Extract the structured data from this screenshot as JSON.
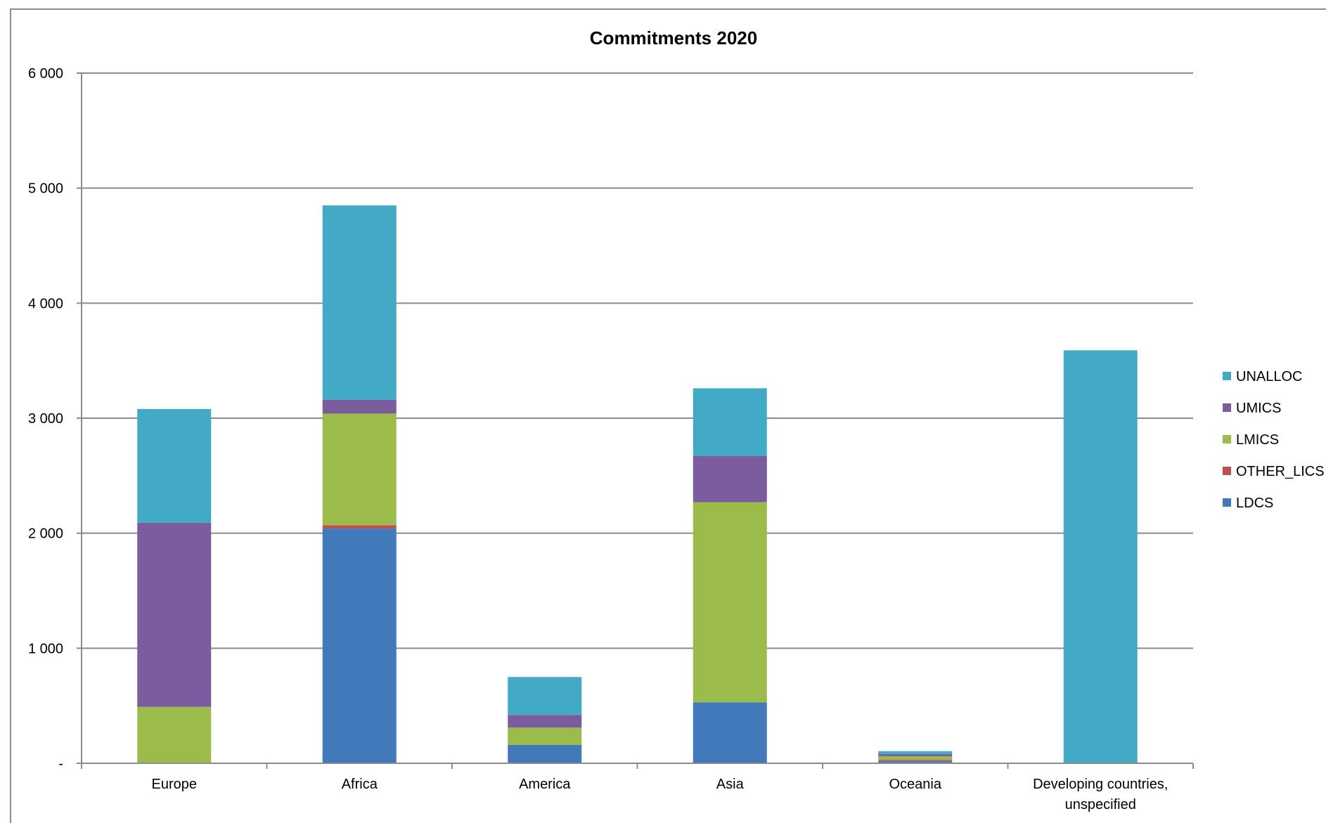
{
  "chart_data": {
    "type": "bar",
    "stacked": true,
    "title": "Commitments 2020",
    "xlabel": "",
    "ylabel": "",
    "categories": [
      "Europe",
      "Africa",
      "America",
      "Asia",
      "Oceania",
      "Developing countries, unspecified"
    ],
    "category_lines": [
      [
        "Europe"
      ],
      [
        "Africa"
      ],
      [
        "America"
      ],
      [
        "Asia"
      ],
      [
        "Oceania"
      ],
      [
        "Developing countries,",
        "unspecified"
      ]
    ],
    "ylim": [
      0,
      6000
    ],
    "yticks": [
      0,
      1000,
      2000,
      3000,
      4000,
      5000,
      6000
    ],
    "ytick_labels": [
      "-",
      "1 000",
      "2 000",
      "3 000",
      "4 000",
      "5 000",
      "6 000"
    ],
    "grid": true,
    "legend_position": "right",
    "series": [
      {
        "name": "LDCS",
        "color": "#4279bb",
        "values": [
          0,
          2040,
          160,
          530,
          20,
          0
        ]
      },
      {
        "name": "OTHER_LICS",
        "color": "#c0504d",
        "values": [
          0,
          30,
          0,
          0,
          10,
          0
        ]
      },
      {
        "name": "LMICS",
        "color": "#9bbb4a",
        "values": [
          490,
          970,
          150,
          1740,
          30,
          0
        ]
      },
      {
        "name": "UMICS",
        "color": "#7b5c9e",
        "values": [
          1600,
          120,
          110,
          400,
          20,
          0
        ]
      },
      {
        "name": "UNALLOC",
        "color": "#42aac5",
        "values": [
          990,
          1690,
          330,
          590,
          25,
          3590
        ]
      }
    ]
  }
}
